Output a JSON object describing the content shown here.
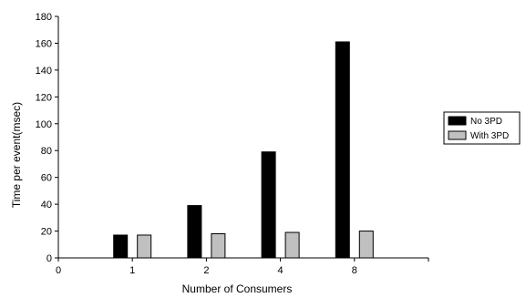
{
  "chart_data": {
    "type": "bar",
    "categories": [
      "1",
      "2",
      "4",
      "8"
    ],
    "x_ticks": [
      "0",
      "1",
      "2",
      "4",
      "8"
    ],
    "series": [
      {
        "name": "No 3PD",
        "values": [
          17,
          39,
          79,
          161
        ],
        "color": "#000000"
      },
      {
        "name": "With 3PD",
        "values": [
          17,
          18,
          19,
          20
        ],
        "color": "#c0c0c0"
      }
    ],
    "title": "",
    "xlabel": "Number of Consumers",
    "ylabel": "Time per event(msec)",
    "ylim": [
      0,
      180
    ],
    "yticks": [
      0,
      20,
      40,
      60,
      80,
      100,
      120,
      140,
      160,
      180
    ],
    "grid": false,
    "legend_position": "right"
  }
}
